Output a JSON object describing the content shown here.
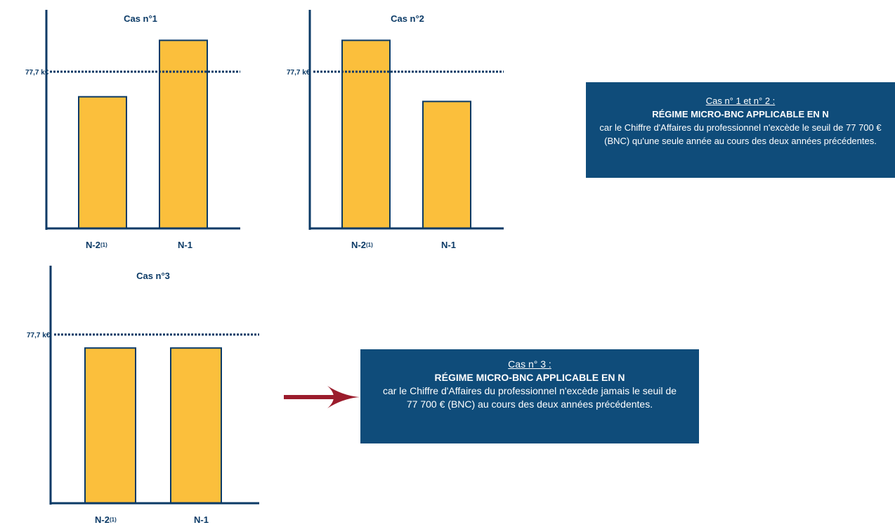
{
  "charts": [
    {
      "title": "Cas n°1",
      "threshold_label": "77,7 k€",
      "categories": [
        {
          "main": "N-2",
          "sup": "(1)"
        },
        {
          "main": "N-1",
          "sup": ""
        }
      ]
    },
    {
      "title": "Cas n°2",
      "threshold_label": "77,7 k€",
      "categories": [
        {
          "main": "N-2",
          "sup": "(1)"
        },
        {
          "main": "N-1",
          "sup": ""
        }
      ]
    },
    {
      "title": "Cas n°3",
      "threshold_label": "77,7 k€",
      "categories": [
        {
          "main": "N-2",
          "sup": "(1)"
        },
        {
          "main": "N-1",
          "sup": ""
        }
      ]
    }
  ],
  "chart_data": [
    {
      "type": "bar",
      "title": "Cas n°1",
      "categories": [
        "N-2(1)",
        "N-1"
      ],
      "values": [
        0.84,
        1.2
      ],
      "threshold": 1.0,
      "threshold_label": "77,7 k€",
      "ylim": [
        0,
        1.3
      ],
      "bar_color": "#fbbf3c",
      "axis_color": "#0b3a66"
    },
    {
      "type": "bar",
      "title": "Cas n°2",
      "categories": [
        "N-2(1)",
        "N-1"
      ],
      "values": [
        1.2,
        0.81
      ],
      "threshold": 1.0,
      "threshold_label": "77,7 k€",
      "ylim": [
        0,
        1.3
      ],
      "bar_color": "#fbbf3c",
      "axis_color": "#0b3a66"
    },
    {
      "type": "bar",
      "title": "Cas n°3",
      "categories": [
        "N-2(1)",
        "N-1"
      ],
      "values": [
        0.92,
        0.92
      ],
      "threshold": 1.0,
      "threshold_label": "77,7 k€",
      "ylim": [
        0,
        1.3
      ],
      "bar_color": "#fbbf3c",
      "axis_color": "#0b3a66"
    }
  ],
  "box1": {
    "case_line": "Cas n° 1 et n° 2 :",
    "regime_line": "RÉGIME MICRO-BNC APPLICABLE EN N",
    "desc_line": "car le Chiffre d'Affaires du professionnel n'excède le seuil de 77 700 € (BNC) qu'une seule année au cours des deux années précédentes."
  },
  "box2": {
    "case_line": "Cas n° 3 :",
    "regime_line": "RÉGIME MICRO-BNC APPLICABLE EN N",
    "desc_line": "car le Chiffre d'Affaires du professionnel n'excède jamais le seuil de 77 700 € (BNC) au cours des deux années précédentes."
  },
  "colors": {
    "navy": "#0b3a66",
    "box_bg": "#0f4c7a",
    "bar": "#fbbf3c",
    "arrow": "#9b1c2c"
  }
}
